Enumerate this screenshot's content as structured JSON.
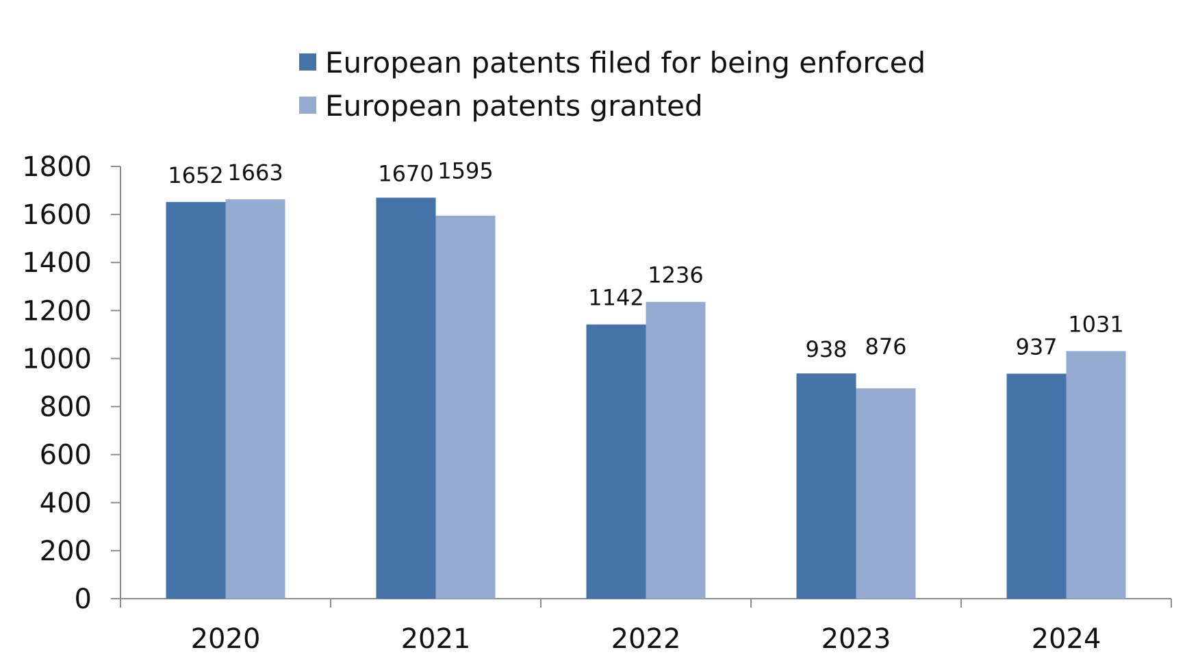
{
  "chart_data": {
    "type": "bar",
    "title": "",
    "xlabel": "",
    "ylabel": "",
    "categories": [
      "2020",
      "2021",
      "2022",
      "2023",
      "2024"
    ],
    "series": [
      {
        "name": "European patents filed for being enforced",
        "color": "#4673a7",
        "values": [
          1652,
          1670,
          1142,
          938,
          937
        ]
      },
      {
        "name": "European patents granted",
        "color": "#95aad1",
        "values": [
          1663,
          1595,
          1236,
          876,
          1031
        ]
      }
    ],
    "ylim": [
      0,
      1800
    ],
    "yticks": [
      0,
      200,
      400,
      600,
      800,
      1000,
      1200,
      1400,
      1600,
      1800
    ],
    "grid": false,
    "legend_position": "top-center",
    "data_labels": true
  }
}
